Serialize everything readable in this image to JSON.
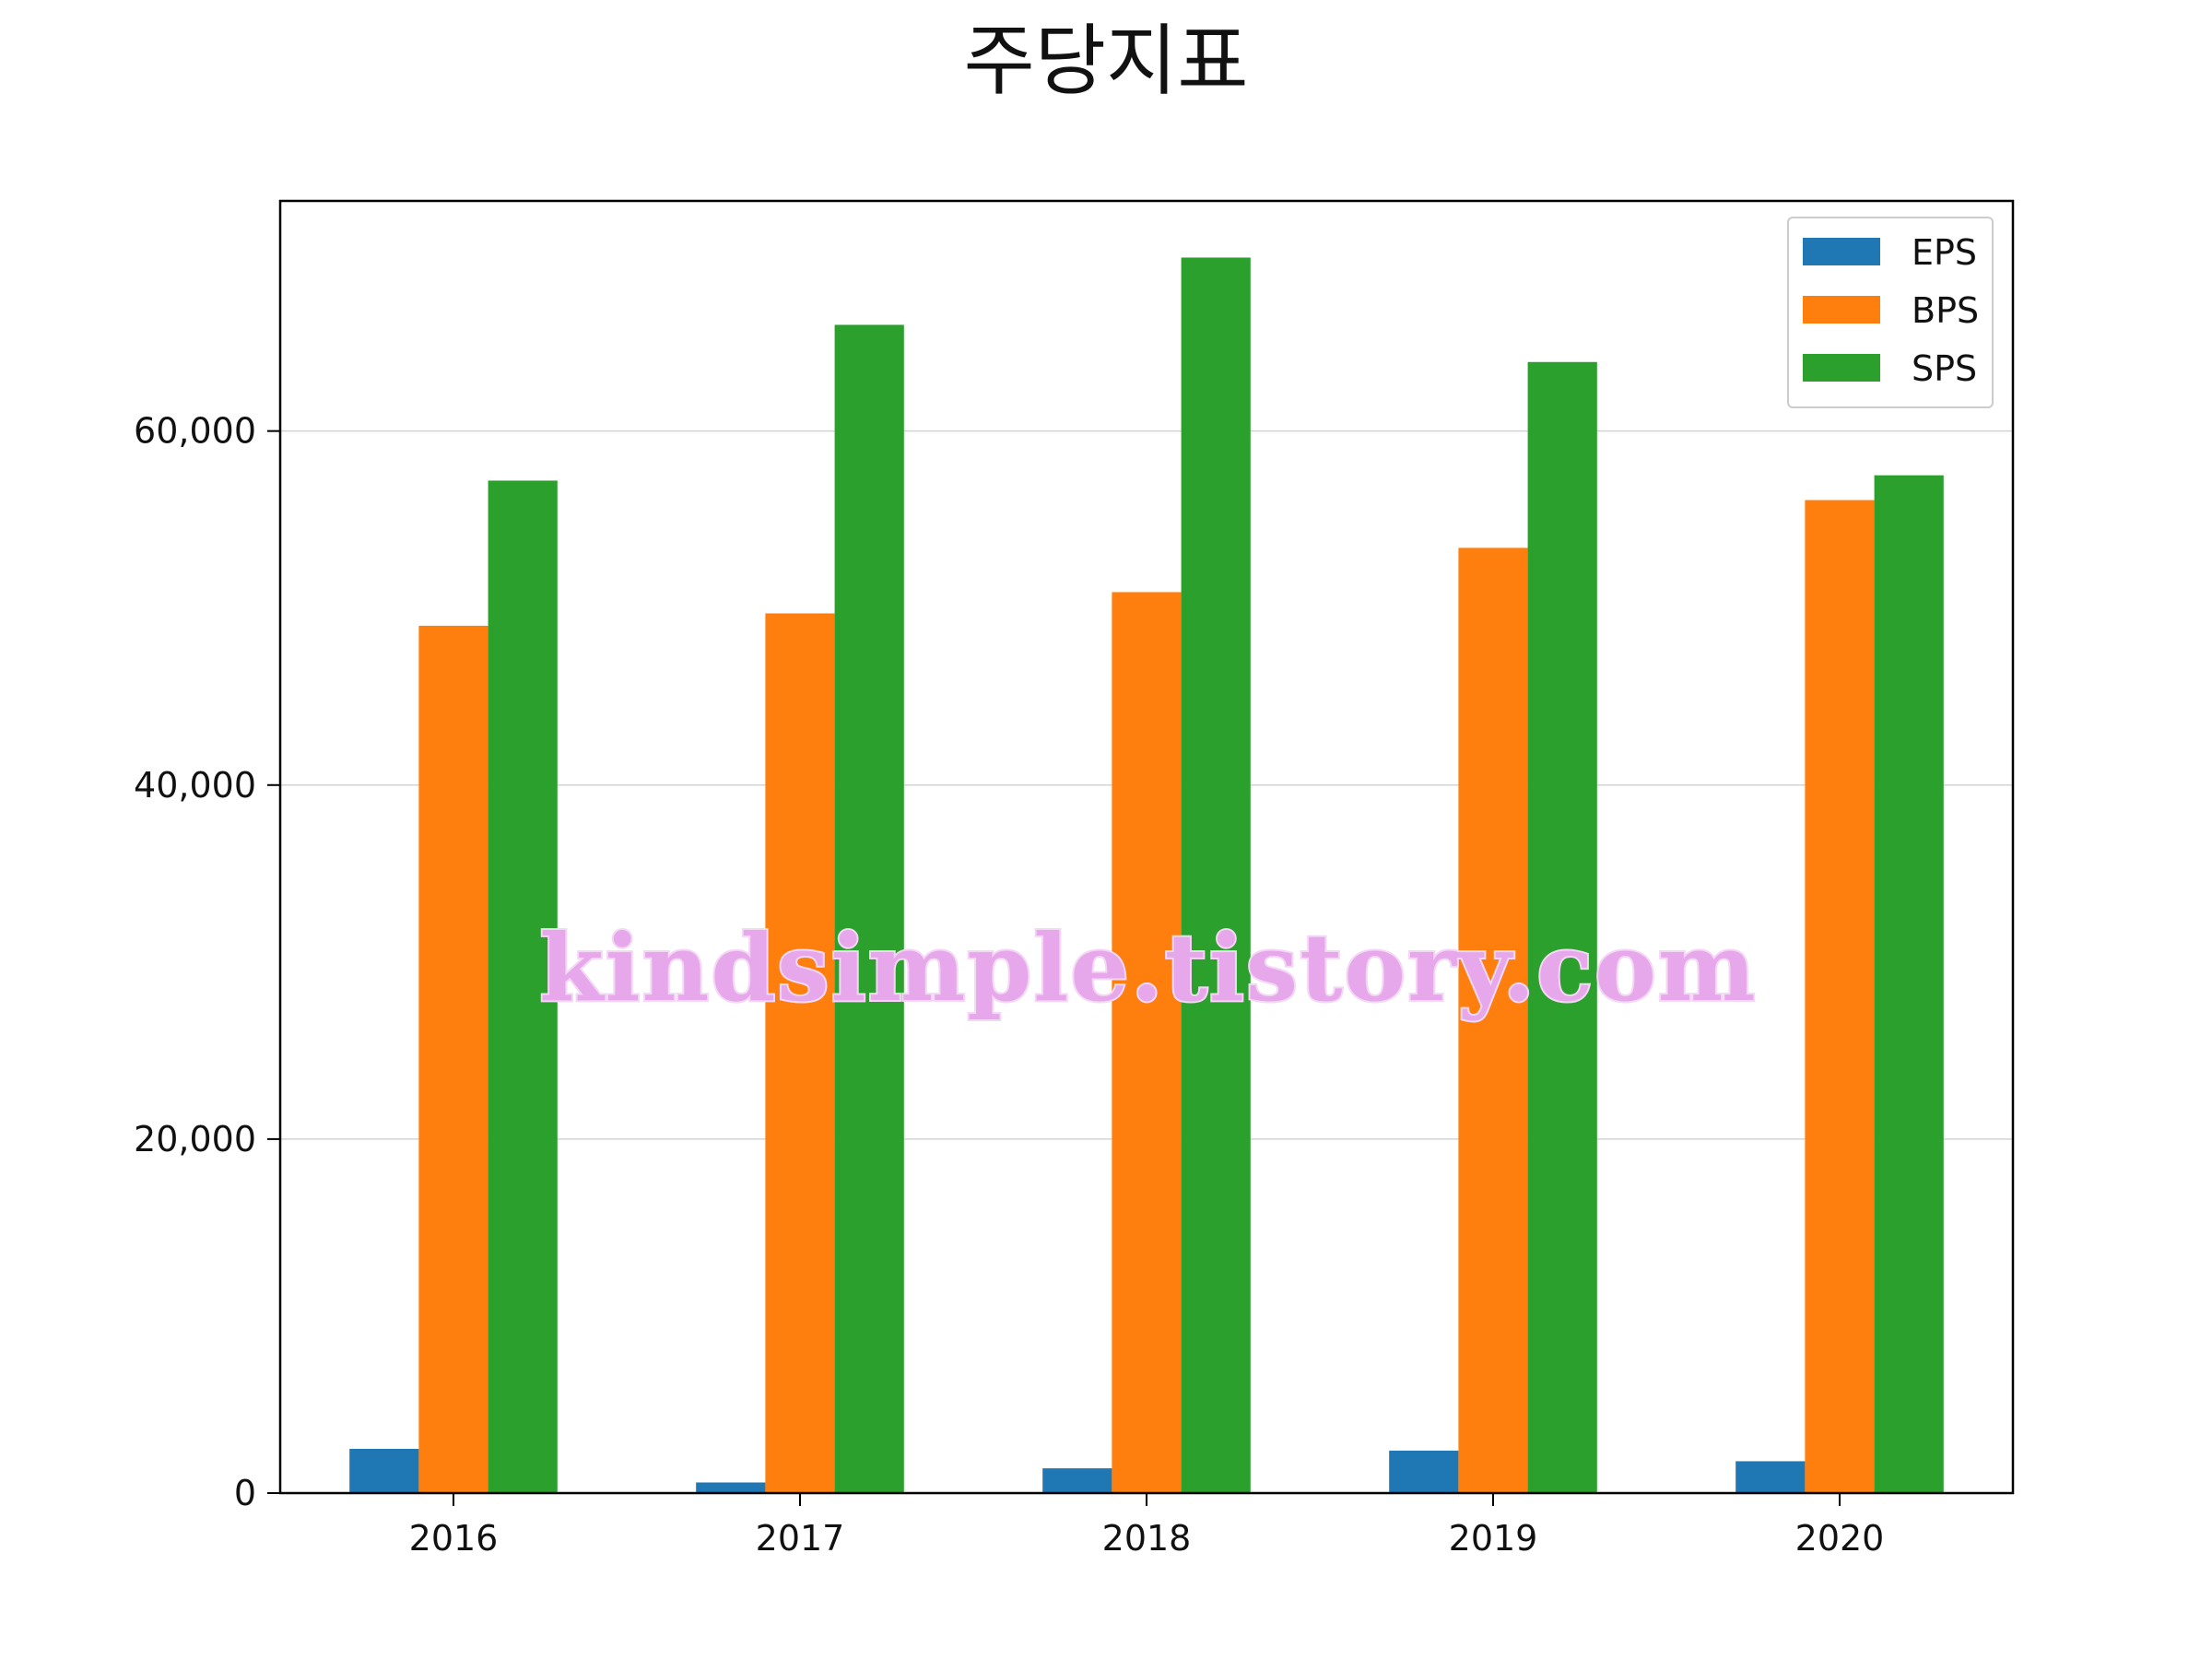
{
  "chart_data": {
    "type": "bar",
    "title": "주당지표",
    "categories": [
      "2016",
      "2017",
      "2018",
      "2019",
      "2020"
    ],
    "series": [
      {
        "name": "EPS",
        "color": "#1f77b4",
        "values": [
          2500,
          600,
          1400,
          2400,
          1800
        ]
      },
      {
        "name": "BPS",
        "color": "#ff7f0e",
        "values": [
          49000,
          49700,
          50900,
          53400,
          56100
        ]
      },
      {
        "name": "SPS",
        "color": "#2ca02c",
        "values": [
          57200,
          66000,
          69800,
          63900,
          57500
        ]
      }
    ],
    "xlabel": "",
    "ylabel": "",
    "ylim": [
      0,
      73000
    ],
    "yticks": [
      0,
      20000,
      40000,
      60000
    ],
    "ytick_labels": [
      "0",
      "20,000",
      "40,000",
      "60,000"
    ],
    "grid": "horizontal",
    "legend_position": "top-right"
  },
  "watermark": "kindsimple.tistory.com"
}
